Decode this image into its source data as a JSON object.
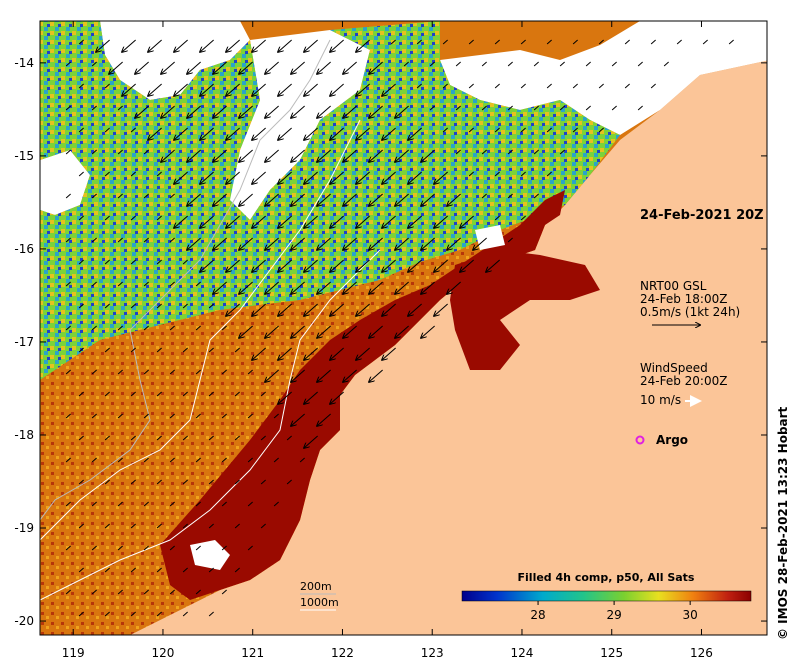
{
  "map": {
    "timestamp": "24-Feb-2021 20Z",
    "lon_ticks": [
      "119",
      "120",
      "121",
      "122",
      "123",
      "124",
      "125",
      "126"
    ],
    "lat_ticks": [
      "-14",
      "-15",
      "-16",
      "-17",
      "-18",
      "-19",
      "-20"
    ],
    "lon_range": [
      118.63,
      126.73
    ],
    "lat_range": [
      -20.15,
      -13.55
    ],
    "colors": {
      "land": "#fbc598",
      "hot_sst": "#9a0a00",
      "warm_sst": "#d9760f",
      "mid_sst": "#7bd339",
      "cool_sst": "#22b8c4",
      "cold_sst": "#2040c8"
    }
  },
  "legend": {
    "current": {
      "title": "NRT00 GSL",
      "time": "24-Feb 18:00Z",
      "scale": "0.5m/s (1kt 24h)"
    },
    "wind": {
      "title": "WindSpeed",
      "time": "24-Feb 20:00Z",
      "scale": "10 m/s"
    },
    "argo": {
      "label": "Argo",
      "color": "#e020e0"
    },
    "isobaths": [
      "200m",
      "1000m"
    ]
  },
  "colorbar": {
    "title": "Filled 4h comp, p50, All Sats",
    "ticks": [
      "28",
      "29",
      "30"
    ],
    "tick_values": [
      28,
      29,
      30
    ],
    "range": [
      27.0,
      30.8
    ]
  },
  "credit": "IMOS 28-Feb-2021 13:23 Hobart",
  "credit_symbol": "©"
}
